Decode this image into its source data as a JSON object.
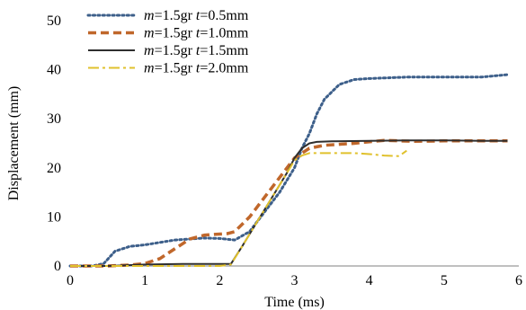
{
  "chart_data": {
    "type": "line",
    "title": "",
    "xlabel": "Time (ms)",
    "ylabel": "Displacement (mm)",
    "xlim": [
      0,
      6
    ],
    "ylim": [
      0,
      50
    ],
    "xticks": [
      "0",
      "1",
      "2",
      "3",
      "4",
      "5",
      "6"
    ],
    "yticks": [
      "0",
      "10",
      "20",
      "30",
      "40",
      "50"
    ],
    "grid": false,
    "legend_position": "top-left",
    "series": [
      {
        "name": "m=1.5gr t=0.5mm",
        "label_parts": [
          "m",
          "=1.5gr ",
          "t",
          "=0.5mm"
        ],
        "color": "#3d5f8a",
        "dash": "dotted",
        "x": [
          0,
          0.3,
          0.45,
          0.6,
          0.8,
          1.0,
          1.2,
          1.4,
          1.6,
          1.8,
          2.0,
          2.2,
          2.4,
          2.6,
          2.8,
          3.0,
          3.1,
          3.2,
          3.3,
          3.4,
          3.6,
          3.8,
          4.0,
          4.5,
          5.0,
          5.5,
          5.85
        ],
        "y": [
          0,
          0,
          0.5,
          3,
          4,
          4.3,
          4.8,
          5.3,
          5.5,
          5.7,
          5.6,
          5.3,
          7,
          11,
          15,
          20,
          24,
          27,
          31,
          34,
          37,
          38,
          38.2,
          38.5,
          38.5,
          38.5,
          39
        ]
      },
      {
        "name": "m=1.5gr t=1.0mm",
        "label_parts": [
          "m",
          "=1.5gr ",
          "t",
          "=1.0mm"
        ],
        "color": "#c0672b",
        "dash": "dashed",
        "x": [
          0,
          0.5,
          0.8,
          1.0,
          1.2,
          1.4,
          1.6,
          1.8,
          2.0,
          2.1,
          2.2,
          2.4,
          2.6,
          2.8,
          3.0,
          3.2,
          3.4,
          3.8,
          4.2,
          4.6,
          5.0,
          5.4,
          5.85
        ],
        "y": [
          0,
          0,
          0.2,
          0.5,
          1.5,
          3.5,
          5.5,
          6.3,
          6.5,
          6.6,
          7,
          10,
          14,
          18,
          22,
          24,
          24.6,
          25,
          25.6,
          25.4,
          25.5,
          25.5,
          25.5
        ],
        "note": ""
      },
      {
        "name": "m=1.5gr t=1.5mm",
        "label_parts": [
          "m",
          "=1.5gr ",
          "t",
          "=1.5mm"
        ],
        "color": "#2f2f2f",
        "dash": "solid",
        "x": [
          0,
          0.5,
          1.0,
          1.5,
          2.0,
          2.15,
          2.3,
          2.5,
          2.7,
          2.9,
          3.0,
          3.1,
          3.2,
          3.3,
          3.5,
          4.0,
          4.5,
          5.0,
          5.5,
          5.85
        ],
        "y": [
          0,
          0,
          0.3,
          0.4,
          0.4,
          0.4,
          4,
          9,
          14,
          19,
          22,
          24,
          25,
          25.3,
          25.4,
          25.5,
          25.6,
          25.6,
          25.5,
          25.5
        ]
      },
      {
        "name": "m=1.5gr t=2.0mm",
        "label_parts": [
          "m",
          "=1.5gr ",
          "t",
          "=2.0mm"
        ],
        "color": "#e0c12c",
        "dash": "dashdot",
        "x": [
          0,
          0.5,
          1.0,
          1.5,
          2.0,
          2.15,
          2.3,
          2.5,
          2.7,
          2.9,
          3.0,
          3.1,
          3.2,
          3.4,
          3.6,
          3.8,
          4.0,
          4.2,
          4.4,
          4.5
        ],
        "y": [
          0,
          0,
          0,
          0,
          0,
          0.3,
          4,
          9,
          14,
          19,
          21.5,
          22.5,
          23,
          23,
          23,
          23,
          22.8,
          22.5,
          22.4,
          23.5
        ]
      }
    ]
  }
}
